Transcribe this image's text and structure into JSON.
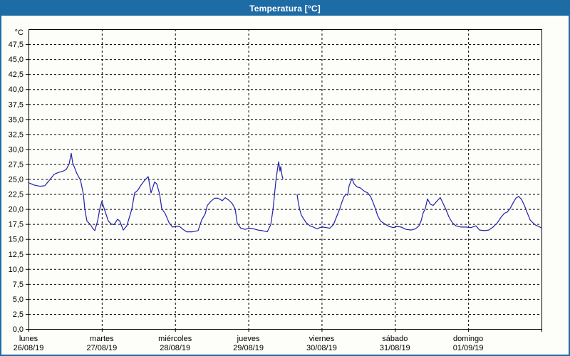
{
  "window": {
    "title": "Temperatura [°C]",
    "title_bar_color": "#1e6ca6",
    "border_color": "#1e6ca6"
  },
  "chart_data": {
    "type": "line",
    "title": "Temperatura [°C]",
    "ylabel": "°C",
    "ylim": [
      0,
      50
    ],
    "ytick_step": 2.5,
    "grid": "dashed",
    "legend": "none",
    "line_color": "#2020a8",
    "yticks": [
      [
        0,
        "0,0"
      ],
      [
        2.5,
        "2,5"
      ],
      [
        5,
        "5,0"
      ],
      [
        7.5,
        "7,5"
      ],
      [
        10,
        "10,0"
      ],
      [
        12.5,
        "12,5"
      ],
      [
        15,
        "15,0"
      ],
      [
        17.5,
        "17,5"
      ],
      [
        20,
        "20,0"
      ],
      [
        22.5,
        "22,5"
      ],
      [
        25,
        "25,0"
      ],
      [
        27.5,
        "27,5"
      ],
      [
        30,
        "30,0"
      ],
      [
        32.5,
        "32,5"
      ],
      [
        35,
        "35,0"
      ],
      [
        37.5,
        "37,5"
      ],
      [
        40,
        "40,0"
      ],
      [
        42.5,
        "42,5"
      ],
      [
        45,
        "45,0"
      ],
      [
        47.5,
        "47,5"
      ]
    ],
    "x_days": [
      {
        "name": "lunes",
        "date": "26/08/19"
      },
      {
        "name": "martes",
        "date": "27/08/19"
      },
      {
        "name": "miércoles",
        "date": "28/08/19"
      },
      {
        "name": "jueves",
        "date": "29/08/19"
      },
      {
        "name": "viernes",
        "date": "30/08/19"
      },
      {
        "name": "sábado",
        "date": "31/08/19"
      },
      {
        "name": "domingo",
        "date": "01/09/19"
      }
    ],
    "series": [
      {
        "name": "temperatura",
        "units": "°C",
        "points": [
          [
            0.0,
            24.4
          ],
          [
            0.078,
            24.0
          ],
          [
            0.156,
            23.8
          ],
          [
            0.224,
            23.9
          ],
          [
            0.292,
            24.9
          ],
          [
            0.35,
            25.8
          ],
          [
            0.408,
            26.1
          ],
          [
            0.467,
            26.3
          ],
          [
            0.515,
            26.6
          ],
          [
            0.554,
            27.5
          ],
          [
            0.583,
            29.3
          ],
          [
            0.603,
            27.7
          ],
          [
            0.642,
            26.5
          ],
          [
            0.661,
            25.9
          ],
          [
            0.71,
            24.8
          ],
          [
            0.749,
            22.5
          ],
          [
            0.768,
            20.0
          ],
          [
            0.797,
            18.0
          ],
          [
            0.846,
            17.4
          ],
          [
            0.875,
            16.8
          ],
          [
            0.904,
            16.4
          ],
          [
            0.943,
            18.0
          ],
          [
            0.972,
            20.0
          ],
          [
            1.001,
            21.3
          ],
          [
            1.04,
            19.8
          ],
          [
            1.089,
            18.0
          ],
          [
            1.128,
            17.5
          ],
          [
            1.167,
            17.4
          ],
          [
            1.215,
            18.3
          ],
          [
            1.244,
            18.0
          ],
          [
            1.293,
            16.5
          ],
          [
            1.342,
            17.2
          ],
          [
            1.41,
            20.0
          ],
          [
            1.449,
            22.7
          ],
          [
            1.488,
            23.1
          ],
          [
            1.536,
            24.0
          ],
          [
            1.585,
            24.8
          ],
          [
            1.633,
            25.4
          ],
          [
            1.672,
            22.7
          ],
          [
            1.721,
            24.5
          ],
          [
            1.75,
            24.2
          ],
          [
            1.789,
            22.5
          ],
          [
            1.818,
            20.1
          ],
          [
            1.867,
            19.2
          ],
          [
            1.915,
            17.8
          ],
          [
            1.964,
            17.0
          ],
          [
            2.013,
            17.1
          ],
          [
            2.061,
            17.1
          ],
          [
            2.11,
            16.6
          ],
          [
            2.158,
            16.2
          ],
          [
            2.236,
            16.2
          ],
          [
            2.314,
            16.4
          ],
          [
            2.363,
            18.2
          ],
          [
            2.411,
            19.2
          ],
          [
            2.44,
            20.6
          ],
          [
            2.489,
            21.3
          ],
          [
            2.538,
            21.8
          ],
          [
            2.586,
            21.8
          ],
          [
            2.645,
            21.4
          ],
          [
            2.683,
            21.9
          ],
          [
            2.732,
            21.5
          ],
          [
            2.781,
            20.9
          ],
          [
            2.82,
            20.0
          ],
          [
            2.849,
            17.6
          ],
          [
            2.897,
            16.8
          ],
          [
            2.956,
            16.6
          ],
          [
            3.014,
            16.8
          ],
          [
            3.072,
            16.7
          ],
          [
            3.131,
            16.5
          ],
          [
            3.189,
            16.4
          ],
          [
            3.257,
            16.2
          ],
          [
            3.306,
            17.4
          ],
          [
            3.335,
            19.8
          ],
          [
            3.354,
            22.1
          ],
          [
            3.374,
            24.5
          ],
          [
            3.393,
            26.3
          ],
          [
            3.413,
            27.9
          ],
          [
            3.432,
            26.3
          ],
          [
            3.442,
            27.1
          ],
          [
            3.461,
            25.5
          ],
          [
            3.471,
            25.1
          ],
          null,
          [
            3.665,
            22.4
          ],
          [
            3.684,
            20.9
          ],
          [
            3.704,
            19.8
          ],
          [
            3.723,
            19.0
          ],
          [
            3.752,
            18.4
          ],
          [
            3.791,
            17.7
          ],
          [
            3.84,
            17.2
          ],
          [
            3.888,
            17.0
          ],
          [
            3.937,
            16.7
          ],
          [
            3.976,
            16.9
          ],
          [
            4.015,
            17.0
          ],
          [
            4.064,
            16.9
          ],
          [
            4.112,
            16.8
          ],
          [
            4.161,
            17.4
          ],
          [
            4.21,
            18.9
          ],
          [
            4.249,
            20.1
          ],
          [
            4.278,
            21.2
          ],
          [
            4.307,
            22.1
          ],
          [
            4.336,
            22.5
          ],
          [
            4.356,
            22.3
          ],
          [
            4.375,
            23.9
          ],
          [
            4.414,
            25.1
          ],
          [
            4.443,
            24.2
          ],
          [
            4.482,
            23.7
          ],
          [
            4.531,
            23.5
          ],
          [
            4.579,
            23.0
          ],
          [
            4.628,
            22.7
          ],
          [
            4.667,
            22.1
          ],
          [
            4.696,
            21.3
          ],
          [
            4.735,
            20.0
          ],
          [
            4.764,
            18.9
          ],
          [
            4.803,
            18.0
          ],
          [
            4.851,
            17.6
          ],
          [
            4.919,
            17.1
          ],
          [
            4.978,
            16.9
          ],
          [
            5.026,
            17.1
          ],
          [
            5.085,
            17.0
          ],
          [
            5.153,
            16.6
          ],
          [
            5.221,
            16.5
          ],
          [
            5.279,
            16.7
          ],
          [
            5.328,
            17.2
          ],
          [
            5.357,
            18.0
          ],
          [
            5.386,
            19.4
          ],
          [
            5.415,
            20.1
          ],
          [
            5.444,
            21.7
          ],
          [
            5.483,
            20.8
          ],
          [
            5.522,
            20.6
          ],
          [
            5.571,
            21.3
          ],
          [
            5.619,
            21.9
          ],
          [
            5.658,
            20.9
          ],
          [
            5.697,
            19.9
          ],
          [
            5.736,
            18.7
          ],
          [
            5.785,
            17.7
          ],
          [
            5.833,
            17.2
          ],
          [
            5.901,
            17.0
          ],
          [
            5.969,
            17.0
          ],
          [
            6.037,
            16.9
          ],
          [
            6.105,
            17.2
          ],
          [
            6.154,
            16.5
          ],
          [
            6.222,
            16.4
          ],
          [
            6.281,
            16.5
          ],
          [
            6.339,
            17.0
          ],
          [
            6.397,
            17.7
          ],
          [
            6.446,
            18.6
          ],
          [
            6.494,
            19.3
          ],
          [
            6.533,
            19.5
          ],
          [
            6.572,
            20.1
          ],
          [
            6.611,
            21.0
          ],
          [
            6.65,
            21.8
          ],
          [
            6.689,
            22.1
          ],
          [
            6.728,
            21.6
          ],
          [
            6.767,
            20.6
          ],
          [
            6.805,
            19.4
          ],
          [
            6.844,
            18.2
          ],
          [
            6.883,
            17.7
          ],
          [
            6.922,
            17.3
          ],
          [
            6.961,
            17.1
          ],
          [
            6.99,
            16.9
          ]
        ]
      }
    ]
  }
}
